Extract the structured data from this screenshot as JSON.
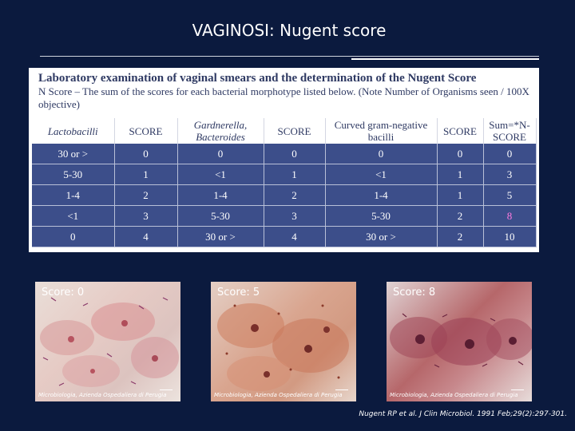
{
  "slide": {
    "title": "VAGINOSI: Nugent score"
  },
  "table_panel": {
    "heading": "Laboratory examination of vaginal smears and the determination of the Nugent Score",
    "description": "N Score – The sum of the scores for each bacterial morphotype listed below. (Note Number of Organisms seen / 100X objective)",
    "columns": [
      "Lactobacilli",
      "SCORE",
      "Gardnerella, Bacteroides",
      "SCORE",
      "Curved gram-negative bacilli",
      "SCORE",
      "Sum=*N-SCORE"
    ],
    "rows": [
      [
        "30 or >",
        "0",
        "0",
        "0",
        "0",
        "0",
        "0"
      ],
      [
        "5-30",
        "1",
        "<1",
        "1",
        "<1",
        "1",
        "3"
      ],
      [
        "1-4",
        "2",
        "1-4",
        "2",
        "1-4",
        "1",
        "5"
      ],
      [
        "<1",
        "3",
        "5-30",
        "3",
        "5-30",
        "2",
        "8"
      ],
      [
        "0",
        "4",
        "30 or >",
        "4",
        "30 or >",
        "2",
        "10"
      ]
    ],
    "highlight_color": "#ff7be0"
  },
  "panels": [
    {
      "score_label": "Score: 0",
      "caption": "Microbiologia, Azienda Ospedaliera di Perugia"
    },
    {
      "score_label": "Score: 5",
      "caption": "Microbiologia, Azienda Ospedaliera di Perugia"
    },
    {
      "score_label": "Score: 8",
      "caption": "Microbiologia, Azienda Ospedaliera di Perugia"
    }
  ],
  "citation": "Nugent RP et al. J Clin Microbiol. 1991 Feb;29(2):297-301.",
  "colors": {
    "background": "#0b1a3e",
    "table_row_fill": "#3c4e8a",
    "table_header_text": "#2f3a63"
  }
}
